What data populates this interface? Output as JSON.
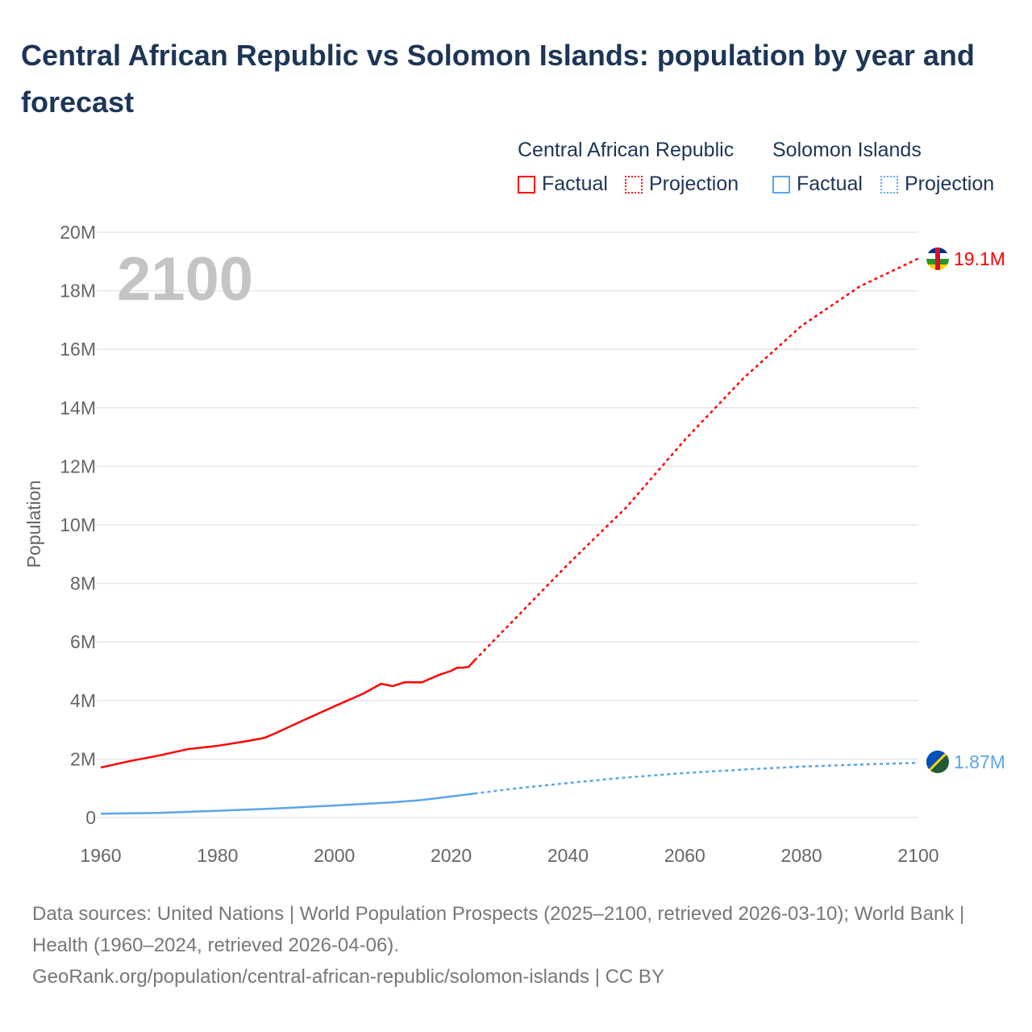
{
  "title": "Central African Republic vs Solomon Islands: population by year and forecast",
  "legend": {
    "groups": [
      {
        "name": "Central African Republic",
        "factual": "Factual",
        "projection": "Projection",
        "color": "#ff0000"
      },
      {
        "name": "Solomon Islands",
        "factual": "Factual",
        "projection": "Projection",
        "color": "#5aa5ec"
      }
    ]
  },
  "year_label": "2100",
  "footer": {
    "sources": "Data sources: United Nations | World Population Prospects (2025–2100, retrieved 2026-03-10); World Bank | Health (1960–2024, retrieved 2026-04-06).",
    "link": "GeoRank.org/population/central-african-republic/solomon-islands | CC BY"
  },
  "chart_data": {
    "type": "line",
    "title": "Central African Republic vs Solomon Islands: population by year and forecast",
    "xlabel": "",
    "ylabel": "Population",
    "xlim": [
      1960,
      2100
    ],
    "ylim": [
      0,
      20000000
    ],
    "x_ticks": [
      "1960",
      "1980",
      "2000",
      "2020",
      "2040",
      "2060",
      "2080",
      "2100"
    ],
    "y_ticks": [
      "0",
      "2M",
      "4M",
      "6M",
      "8M",
      "10M",
      "12M",
      "14M",
      "16M",
      "18M",
      "20M"
    ],
    "grid": true,
    "series": [
      {
        "name": "Central African Republic",
        "color": "#ff0000",
        "end_label": "19.1M",
        "factual": [
          [
            1960,
            1.71
          ],
          [
            1965,
            1.93
          ],
          [
            1970,
            2.12
          ],
          [
            1975,
            2.34
          ],
          [
            1980,
            2.45
          ],
          [
            1985,
            2.61
          ],
          [
            1988,
            2.72
          ],
          [
            1990,
            2.89
          ],
          [
            1995,
            3.35
          ],
          [
            2000,
            3.8
          ],
          [
            2005,
            4.24
          ],
          [
            2008,
            4.57
          ],
          [
            2010,
            4.49
          ],
          [
            2012,
            4.62
          ],
          [
            2015,
            4.62
          ],
          [
            2018,
            4.88
          ],
          [
            2020,
            5.01
          ],
          [
            2021,
            5.12
          ],
          [
            2022,
            5.12
          ],
          [
            2023,
            5.15
          ],
          [
            2024,
            5.37
          ]
        ],
        "projection": [
          [
            2024,
            5.37
          ],
          [
            2030,
            6.6
          ],
          [
            2040,
            8.65
          ],
          [
            2050,
            10.6
          ],
          [
            2060,
            12.9
          ],
          [
            2070,
            15.0
          ],
          [
            2080,
            16.8
          ],
          [
            2090,
            18.15
          ],
          [
            2100,
            19.1
          ]
        ]
      },
      {
        "name": "Solomon Islands",
        "color": "#5aa5ec",
        "end_label": "1.87M",
        "factual": [
          [
            1960,
            0.13
          ],
          [
            1970,
            0.16
          ],
          [
            1980,
            0.23
          ],
          [
            1990,
            0.31
          ],
          [
            2000,
            0.41
          ],
          [
            2010,
            0.52
          ],
          [
            2015,
            0.6
          ],
          [
            2020,
            0.72
          ],
          [
            2024,
            0.82
          ]
        ],
        "projection": [
          [
            2024,
            0.82
          ],
          [
            2030,
            0.97
          ],
          [
            2040,
            1.18
          ],
          [
            2050,
            1.37
          ],
          [
            2060,
            1.52
          ],
          [
            2070,
            1.64
          ],
          [
            2080,
            1.74
          ],
          [
            2090,
            1.81
          ],
          [
            2100,
            1.87
          ]
        ]
      }
    ]
  }
}
